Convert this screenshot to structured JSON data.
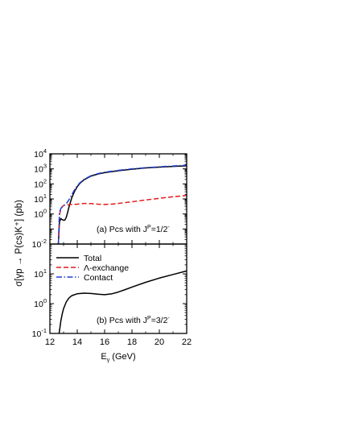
{
  "chart_data": [
    {
      "type": "line",
      "annotation": {
        "prefix": "(a) Pcs with J",
        "superscript": "P",
        "suffix": "=1/2",
        "suffix_superscript": "-"
      },
      "xlabel": {
        "main": "E",
        "subscript": "γ",
        "suffix": " (GeV)"
      },
      "ylabel": "σ[γp → P(cs)K⁺] (pb)",
      "xlim": [
        12,
        22
      ],
      "ylim": [
        0.01,
        10000
      ],
      "yscale": "log",
      "x_ticks": [
        "12",
        "14",
        "16",
        "18",
        "20",
        "22"
      ],
      "y_ticks": [
        {
          "value": 0.01,
          "base": "10",
          "exp": "-2"
        },
        {
          "value": 1,
          "base": "10",
          "exp": "0"
        },
        {
          "value": 10,
          "base": "10",
          "exp": "1"
        },
        {
          "value": 100,
          "base": "10",
          "exp": "2"
        },
        {
          "value": 1000,
          "base": "10",
          "exp": "3"
        },
        {
          "value": 10000,
          "base": "10",
          "exp": "4"
        }
      ],
      "series": [
        {
          "name": "Total",
          "color": "#000000",
          "style": "solid",
          "x": [
            12.62,
            12.7,
            12.8,
            12.9,
            13.0,
            13.1,
            13.2,
            13.3,
            13.4,
            13.5,
            13.6,
            13.8,
            14.0,
            14.2,
            14.5,
            15.0,
            15.5,
            16.0,
            17.0,
            18.0,
            19.0,
            20.0,
            21.0,
            22.0
          ],
          "y": [
            0.01,
            0.28,
            0.5,
            0.42,
            0.38,
            0.4,
            0.6,
            1.3,
            3.0,
            6.0,
            12.0,
            32.0,
            65.0,
            110.0,
            190.0,
            330.0,
            450.0,
            560.0,
            750.0,
            950.0,
            1150.0,
            1300.0,
            1450.0,
            1600.0
          ]
        },
        {
          "name": "Λ-exchange",
          "color": "#e41a1c",
          "style": "dashed",
          "x": [
            12.62,
            12.7,
            12.8,
            12.9,
            13.0,
            13.2,
            13.5,
            14.0,
            14.5,
            15.0,
            15.5,
            16.0,
            16.5,
            17.0,
            18.0,
            19.0,
            20.0,
            21.0,
            22.0
          ],
          "y": [
            0.01,
            0.9,
            2.0,
            3.0,
            3.7,
            4.0,
            4.2,
            4.5,
            5.0,
            4.9,
            4.5,
            4.3,
            4.5,
            5.0,
            6.5,
            8.5,
            11.0,
            14.0,
            17.0
          ]
        },
        {
          "name": "Contact",
          "color": "#1f3fd6",
          "style": "dashdot",
          "x": [
            12.62,
            12.7,
            12.8,
            12.9,
            13.0,
            13.1,
            13.2,
            13.3,
            13.4,
            13.5,
            13.6,
            13.8,
            14.0,
            14.2,
            14.5,
            15.0,
            15.5,
            16.0,
            17.0,
            18.0,
            19.0,
            20.0,
            21.0,
            22.0
          ],
          "y": [
            0.01,
            1.3,
            2.3,
            3.0,
            3.6,
            4.1,
            5.0,
            6.5,
            9.0,
            13.0,
            19.0,
            40.0,
            75.0,
            120.0,
            200.0,
            350.0,
            480.0,
            600.0,
            800.0,
            1000.0,
            1200.0,
            1380.0,
            1550.0,
            1750.0
          ]
        }
      ]
    },
    {
      "type": "line",
      "annotation": {
        "prefix": "(b) Pcs with J",
        "superscript": "P",
        "suffix": "=3/2",
        "suffix_superscript": "-"
      },
      "xlim": [
        12,
        22
      ],
      "ylim": [
        0.1,
        100
      ],
      "yscale": "log",
      "x_ticks": [
        "12",
        "14",
        "16",
        "18",
        "20",
        "22"
      ],
      "y_ticks": [
        {
          "value": 0.1,
          "base": "10",
          "exp": "-1"
        },
        {
          "value": 1,
          "base": "10",
          "exp": "0"
        },
        {
          "value": 10,
          "base": "10",
          "exp": "1"
        }
      ],
      "legend": {
        "placement": "top-left",
        "entries": [
          {
            "label": "Total",
            "color": "#000000",
            "style": "solid"
          },
          {
            "label": "Λ-exchange",
            "color": "#e41a1c",
            "style": "dashed"
          },
          {
            "label": "Contact",
            "color": "#1f3fd6",
            "style": "dashdot"
          }
        ]
      },
      "series": [
        {
          "name": "Total",
          "color": "#000000",
          "style": "solid",
          "x": [
            12.67,
            12.72,
            12.8,
            12.9,
            13.0,
            13.2,
            13.4,
            13.6,
            14.0,
            14.5,
            15.0,
            15.5,
            16.0,
            16.5,
            17.0,
            17.5,
            18.0,
            19.0,
            20.0,
            21.0,
            22.0
          ],
          "y": [
            0.1,
            0.14,
            0.26,
            0.45,
            0.68,
            1.15,
            1.55,
            1.85,
            2.15,
            2.25,
            2.2,
            2.08,
            2.0,
            2.12,
            2.45,
            2.95,
            3.6,
            5.2,
            7.2,
            9.5,
            12.5
          ]
        }
      ]
    }
  ]
}
